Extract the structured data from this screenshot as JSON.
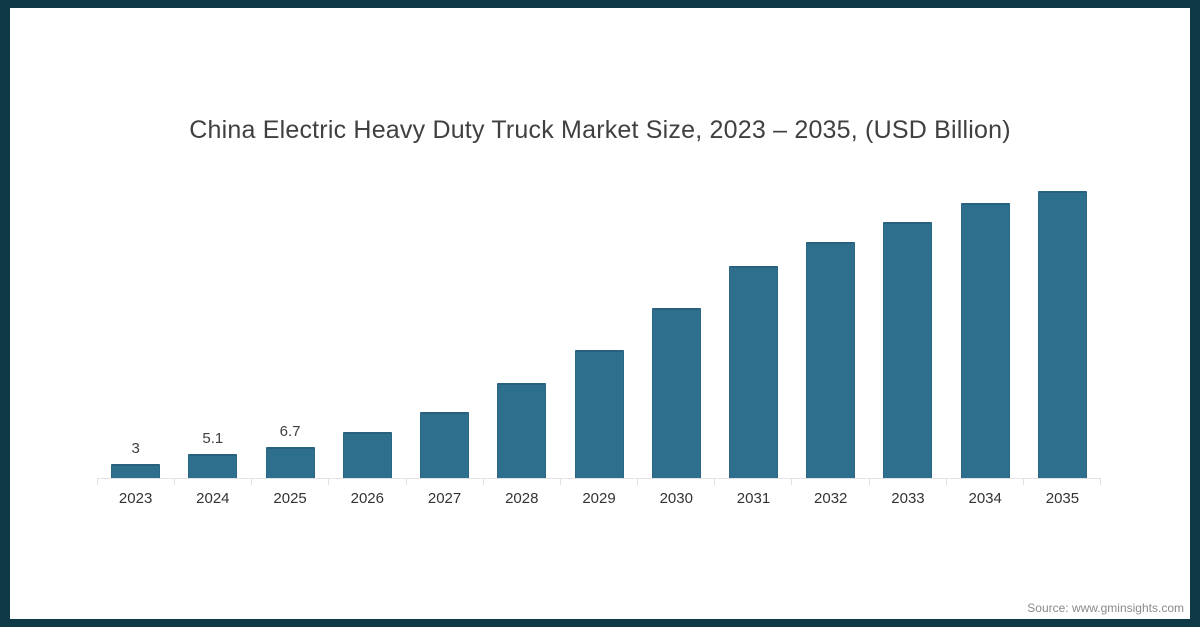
{
  "frame": {
    "border_color": "#0e3946",
    "background_color": "#ffffff"
  },
  "chart_data": {
    "type": "bar",
    "title": "China Electric Heavy Duty Truck Market Size, 2023 – 2035, (USD Billion)",
    "xlabel": "",
    "ylabel": "",
    "categories": [
      "2023",
      "2024",
      "2025",
      "2026",
      "2027",
      "2028",
      "2029",
      "2030",
      "2031",
      "2032",
      "2033",
      "2034",
      "2035"
    ],
    "values": [
      3,
      5.1,
      6.7,
      9.8,
      14,
      20.2,
      27.2,
      36.1,
      45.1,
      50.3,
      54.4,
      58.6,
      61.1
    ],
    "data_labels": [
      "3",
      "5.1",
      "6.7",
      "",
      "",
      "",
      "",
      "",
      "",
      "",
      "",
      "",
      ""
    ],
    "ylim": [
      0,
      65
    ],
    "grid": false,
    "legend": false,
    "y_axis_visible": false,
    "bar_color": "#2f6f8e",
    "bar_edge_color": "#28617d",
    "axis_line_color": "#e3e3e3",
    "tick_label_color": "#333333",
    "data_label_color": "#404040",
    "title_color": "#404040"
  },
  "source": {
    "text": "Source: www.gminsights.com",
    "color": "#8a8a8a"
  }
}
